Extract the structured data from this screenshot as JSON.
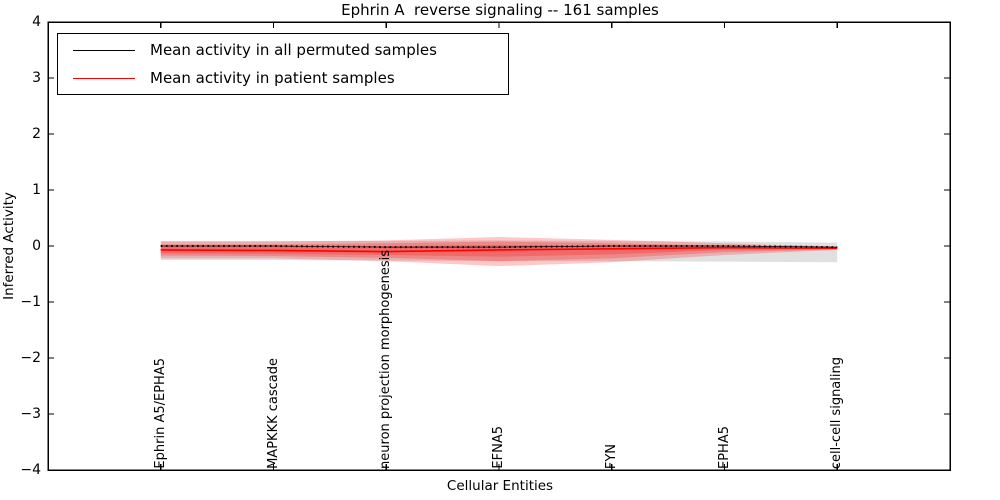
{
  "figure": {
    "title": "Ephrin A  reverse signaling -- 161 samples",
    "xlabel": "Cellular Entities",
    "ylabel": "Inferred Activity"
  },
  "legend": {
    "items": [
      {
        "label": "Mean activity in all permuted samples",
        "color": "#000000"
      },
      {
        "label": "Mean activity in patient samples",
        "color": "#ff0000"
      }
    ]
  },
  "chart_data": {
    "type": "line",
    "title": "Ephrin A  reverse signaling -- 161 samples",
    "xlabel": "Cellular Entities",
    "ylabel": "Inferred Activity",
    "categories": [
      "Ephrin A5/EPHA5",
      "MAPKKK cascade",
      "neuron projection morphogenesis",
      "EFNA5",
      "FYN",
      "EPHA5",
      "cell-cell signaling"
    ],
    "xlim": [
      -1,
      7
    ],
    "ylim": [
      -4,
      4
    ],
    "ytick_values": [
      4,
      3,
      2,
      1,
      0,
      -1,
      -2,
      -3,
      -4
    ],
    "ytick_labels": [
      "4",
      "3",
      "2",
      "1",
      "0",
      "−1",
      "−2",
      "−3",
      "−4"
    ],
    "grid": false,
    "legend_position": "upper left",
    "series": [
      {
        "name": "Mean activity in all permuted samples",
        "color": "#000000",
        "style": "dotted",
        "values": [
          0.0,
          0.0,
          -0.02,
          -0.02,
          0.0,
          0.0,
          -0.02
        ]
      },
      {
        "name": "Mean activity in patient samples",
        "color": "#ff0000",
        "style": "solid",
        "values": [
          -0.07,
          -0.08,
          -0.1,
          -0.07,
          -0.05,
          -0.03,
          -0.04
        ]
      }
    ],
    "bands": [
      {
        "name": "permuted-std-band",
        "color": "#000000",
        "opacity": 0.12,
        "upper": [
          0.09,
          0.09,
          0.09,
          0.1,
          0.09,
          0.08,
          0.06
        ],
        "lower": [
          -0.25,
          -0.25,
          -0.26,
          -0.27,
          -0.27,
          -0.28,
          -0.29
        ]
      },
      {
        "name": "patient-std-band-outer",
        "color": "#ff0000",
        "opacity": 0.22,
        "upper": [
          0.08,
          0.08,
          0.1,
          0.16,
          0.11,
          0.05,
          -0.01
        ],
        "lower": [
          -0.22,
          -0.22,
          -0.27,
          -0.36,
          -0.29,
          -0.16,
          -0.07
        ]
      },
      {
        "name": "patient-std-band-mid",
        "color": "#ff0000",
        "opacity": 0.22,
        "upper": [
          0.03,
          0.03,
          0.05,
          0.08,
          0.05,
          0.01,
          -0.02
        ],
        "lower": [
          -0.17,
          -0.18,
          -0.21,
          -0.27,
          -0.22,
          -0.11,
          -0.06
        ]
      },
      {
        "name": "patient-std-band-inner",
        "color": "#ff0000",
        "opacity": 0.22,
        "upper": [
          -0.01,
          -0.01,
          0.0,
          0.02,
          0.0,
          -0.01,
          -0.03
        ],
        "lower": [
          -0.13,
          -0.14,
          -0.16,
          -0.19,
          -0.15,
          -0.07,
          -0.05
        ]
      }
    ]
  }
}
